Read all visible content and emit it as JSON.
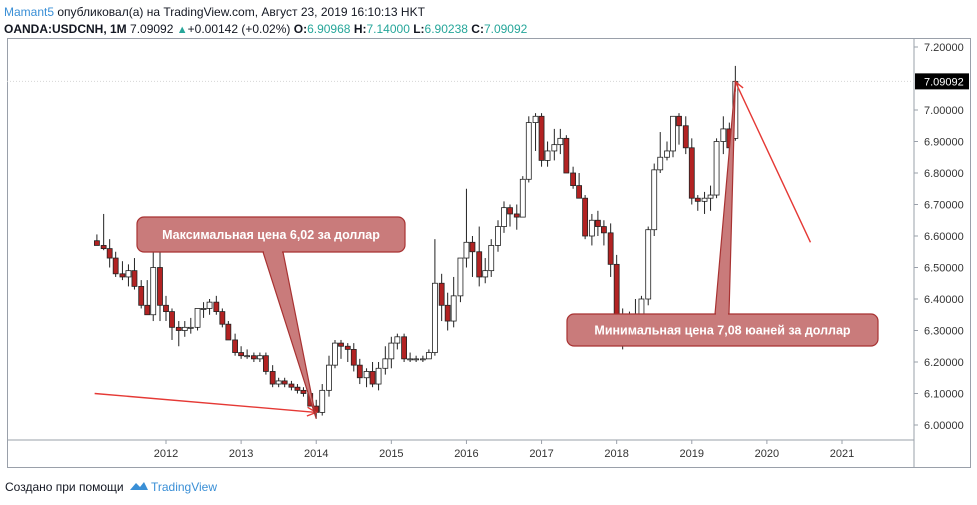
{
  "header": {
    "author": "Mamant5",
    "published_text": "опубликовал(а) на TradingView.com, Август 23, 2019 16:10:13 HKT",
    "symbol": "OANDA:USDCNH, 1M",
    "last": "7.09092",
    "change": "+0.00142 (+0.02%)",
    "o_label": "O:",
    "o_value": "6.90968",
    "h_label": "H:",
    "h_value": "7.14000",
    "l_label": "L:",
    "l_value": "6.90238",
    "c_label": "C:",
    "c_value": "7.09092"
  },
  "footer": {
    "text": "Создано при помощи",
    "brand": "TradingView"
  },
  "colors": {
    "up_candle": "#ffffff",
    "down_candle": "#b22222",
    "annotation_fill": "#c97b7b",
    "annotation_border": "#a83232",
    "arrow": "#e53935",
    "last_price_bg": "#000000"
  },
  "chart_data": {
    "type": "candlestick",
    "title": "",
    "xlabel": "",
    "ylabel": "",
    "x_ticks": [
      "2012",
      "2013",
      "2014",
      "2015",
      "2016",
      "2017",
      "2018",
      "2019",
      "2020",
      "2021"
    ],
    "y_ticks": [
      "6.00000",
      "6.10000",
      "6.20000",
      "6.30000",
      "6.40000",
      "6.50000",
      "6.60000",
      "6.70000",
      "6.80000",
      "6.90000",
      "7.00000",
      "7.20000"
    ],
    "ylim": [
      5.95,
      7.27
    ],
    "x_range": [
      2010.75,
      2021.58
    ],
    "grid": false,
    "last_price_label": "7.09092",
    "last_price": 7.09092,
    "candles": [
      {
        "t": 2011.08,
        "o": 6.585,
        "h": 6.605,
        "l": 6.57,
        "c": 6.57
      },
      {
        "t": 2011.17,
        "o": 6.57,
        "h": 6.67,
        "l": 6.555,
        "c": 6.56
      },
      {
        "t": 2011.25,
        "o": 6.56,
        "h": 6.59,
        "l": 6.5,
        "c": 6.53
      },
      {
        "t": 2011.33,
        "o": 6.53,
        "h": 6.55,
        "l": 6.47,
        "c": 6.48
      },
      {
        "t": 2011.42,
        "o": 6.48,
        "h": 6.52,
        "l": 6.46,
        "c": 6.47
      },
      {
        "t": 2011.5,
        "o": 6.47,
        "h": 6.51,
        "l": 6.44,
        "c": 6.49
      },
      {
        "t": 2011.58,
        "o": 6.49,
        "h": 6.53,
        "l": 6.43,
        "c": 6.44
      },
      {
        "t": 2011.67,
        "o": 6.44,
        "h": 6.46,
        "l": 6.37,
        "c": 6.38
      },
      {
        "t": 2011.75,
        "o": 6.38,
        "h": 6.46,
        "l": 6.35,
        "c": 6.35
      },
      {
        "t": 2011.83,
        "o": 6.35,
        "h": 6.55,
        "l": 6.33,
        "c": 6.5
      },
      {
        "t": 2011.92,
        "o": 6.5,
        "h": 6.58,
        "l": 6.33,
        "c": 6.38
      },
      {
        "t": 2012.0,
        "o": 6.38,
        "h": 6.41,
        "l": 6.33,
        "c": 6.36
      },
      {
        "t": 2012.08,
        "o": 6.36,
        "h": 6.37,
        "l": 6.27,
        "c": 6.31
      },
      {
        "t": 2012.17,
        "o": 6.31,
        "h": 6.33,
        "l": 6.25,
        "c": 6.3
      },
      {
        "t": 2012.25,
        "o": 6.3,
        "h": 6.33,
        "l": 6.28,
        "c": 6.31
      },
      {
        "t": 2012.33,
        "o": 6.31,
        "h": 6.34,
        "l": 6.29,
        "c": 6.31
      },
      {
        "t": 2012.42,
        "o": 6.31,
        "h": 6.37,
        "l": 6.3,
        "c": 6.37
      },
      {
        "t": 2012.5,
        "o": 6.37,
        "h": 6.39,
        "l": 6.34,
        "c": 6.37
      },
      {
        "t": 2012.58,
        "o": 6.37,
        "h": 6.4,
        "l": 6.35,
        "c": 6.39
      },
      {
        "t": 2012.67,
        "o": 6.39,
        "h": 6.41,
        "l": 6.35,
        "c": 6.36
      },
      {
        "t": 2012.75,
        "o": 6.36,
        "h": 6.37,
        "l": 6.31,
        "c": 6.32
      },
      {
        "t": 2012.83,
        "o": 6.32,
        "h": 6.33,
        "l": 6.27,
        "c": 6.27
      },
      {
        "t": 2012.92,
        "o": 6.27,
        "h": 6.29,
        "l": 6.22,
        "c": 6.23
      },
      {
        "t": 2013.0,
        "o": 6.23,
        "h": 6.25,
        "l": 6.21,
        "c": 6.22
      },
      {
        "t": 2013.08,
        "o": 6.22,
        "h": 6.24,
        "l": 6.21,
        "c": 6.22
      },
      {
        "t": 2013.17,
        "o": 6.22,
        "h": 6.23,
        "l": 6.2,
        "c": 6.21
      },
      {
        "t": 2013.25,
        "o": 6.21,
        "h": 6.23,
        "l": 6.2,
        "c": 6.22
      },
      {
        "t": 2013.33,
        "o": 6.22,
        "h": 6.23,
        "l": 6.16,
        "c": 6.17
      },
      {
        "t": 2013.42,
        "o": 6.17,
        "h": 6.19,
        "l": 6.12,
        "c": 6.13
      },
      {
        "t": 2013.5,
        "o": 6.13,
        "h": 6.15,
        "l": 6.12,
        "c": 6.14
      },
      {
        "t": 2013.58,
        "o": 6.14,
        "h": 6.15,
        "l": 6.12,
        "c": 6.13
      },
      {
        "t": 2013.67,
        "o": 6.13,
        "h": 6.14,
        "l": 6.11,
        "c": 6.12
      },
      {
        "t": 2013.75,
        "o": 6.12,
        "h": 6.13,
        "l": 6.1,
        "c": 6.11
      },
      {
        "t": 2013.83,
        "o": 6.11,
        "h": 6.12,
        "l": 6.09,
        "c": 6.1
      },
      {
        "t": 2013.92,
        "o": 6.1,
        "h": 6.11,
        "l": 6.06,
        "c": 6.06
      },
      {
        "t": 2014.0,
        "o": 6.06,
        "h": 6.08,
        "l": 6.02,
        "c": 6.04
      },
      {
        "t": 2014.08,
        "o": 6.04,
        "h": 6.13,
        "l": 6.03,
        "c": 6.11
      },
      {
        "t": 2014.17,
        "o": 6.11,
        "h": 6.22,
        "l": 6.09,
        "c": 6.19
      },
      {
        "t": 2014.25,
        "o": 6.19,
        "h": 6.27,
        "l": 6.18,
        "c": 6.26
      },
      {
        "t": 2014.33,
        "o": 6.26,
        "h": 6.27,
        "l": 6.21,
        "c": 6.25
      },
      {
        "t": 2014.42,
        "o": 6.25,
        "h": 6.26,
        "l": 6.2,
        "c": 6.24
      },
      {
        "t": 2014.5,
        "o": 6.24,
        "h": 6.26,
        "l": 6.17,
        "c": 6.19
      },
      {
        "t": 2014.58,
        "o": 6.19,
        "h": 6.21,
        "l": 6.13,
        "c": 6.15
      },
      {
        "t": 2014.67,
        "o": 6.15,
        "h": 6.18,
        "l": 6.12,
        "c": 6.17
      },
      {
        "t": 2014.75,
        "o": 6.17,
        "h": 6.2,
        "l": 6.12,
        "c": 6.13
      },
      {
        "t": 2014.83,
        "o": 6.13,
        "h": 6.2,
        "l": 6.11,
        "c": 6.18
      },
      {
        "t": 2014.92,
        "o": 6.18,
        "h": 6.25,
        "l": 6.16,
        "c": 6.21
      },
      {
        "t": 2015.0,
        "o": 6.21,
        "h": 6.28,
        "l": 6.18,
        "c": 6.26
      },
      {
        "t": 2015.08,
        "o": 6.26,
        "h": 6.29,
        "l": 6.24,
        "c": 6.28
      },
      {
        "t": 2015.17,
        "o": 6.28,
        "h": 6.29,
        "l": 6.2,
        "c": 6.21
      },
      {
        "t": 2015.25,
        "o": 6.21,
        "h": 6.23,
        "l": 6.2,
        "c": 6.21
      },
      {
        "t": 2015.33,
        "o": 6.21,
        "h": 6.22,
        "l": 6.2,
        "c": 6.21
      },
      {
        "t": 2015.42,
        "o": 6.21,
        "h": 6.22,
        "l": 6.2,
        "c": 6.21
      },
      {
        "t": 2015.5,
        "o": 6.21,
        "h": 6.24,
        "l": 6.21,
        "c": 6.23
      },
      {
        "t": 2015.58,
        "o": 6.23,
        "h": 6.59,
        "l": 6.22,
        "c": 6.45
      },
      {
        "t": 2015.67,
        "o": 6.45,
        "h": 6.48,
        "l": 6.33,
        "c": 6.38
      },
      {
        "t": 2015.75,
        "o": 6.38,
        "h": 6.42,
        "l": 6.3,
        "c": 6.33
      },
      {
        "t": 2015.83,
        "o": 6.33,
        "h": 6.47,
        "l": 6.31,
        "c": 6.41
      },
      {
        "t": 2015.92,
        "o": 6.41,
        "h": 6.53,
        "l": 6.39,
        "c": 6.53
      },
      {
        "t": 2016.0,
        "o": 6.53,
        "h": 6.75,
        "l": 6.5,
        "c": 6.58
      },
      {
        "t": 2016.08,
        "o": 6.58,
        "h": 6.6,
        "l": 6.47,
        "c": 6.55
      },
      {
        "t": 2016.17,
        "o": 6.55,
        "h": 6.63,
        "l": 6.44,
        "c": 6.47
      },
      {
        "t": 2016.25,
        "o": 6.47,
        "h": 6.53,
        "l": 6.45,
        "c": 6.49
      },
      {
        "t": 2016.33,
        "o": 6.49,
        "h": 6.59,
        "l": 6.47,
        "c": 6.57
      },
      {
        "t": 2016.42,
        "o": 6.57,
        "h": 6.65,
        "l": 6.55,
        "c": 6.63
      },
      {
        "t": 2016.5,
        "o": 6.63,
        "h": 6.71,
        "l": 6.61,
        "c": 6.69
      },
      {
        "t": 2016.58,
        "o": 6.69,
        "h": 6.7,
        "l": 6.63,
        "c": 6.67
      },
      {
        "t": 2016.67,
        "o": 6.67,
        "h": 6.7,
        "l": 6.62,
        "c": 6.66
      },
      {
        "t": 2016.75,
        "o": 6.66,
        "h": 6.79,
        "l": 6.66,
        "c": 6.78
      },
      {
        "t": 2016.83,
        "o": 6.78,
        "h": 6.98,
        "l": 6.77,
        "c": 6.96
      },
      {
        "t": 2016.92,
        "o": 6.96,
        "h": 6.99,
        "l": 6.87,
        "c": 6.98
      },
      {
        "t": 2017.0,
        "o": 6.98,
        "h": 6.99,
        "l": 6.82,
        "c": 6.84
      },
      {
        "t": 2017.08,
        "o": 6.84,
        "h": 6.9,
        "l": 6.82,
        "c": 6.87
      },
      {
        "t": 2017.17,
        "o": 6.87,
        "h": 6.94,
        "l": 6.84,
        "c": 6.89
      },
      {
        "t": 2017.25,
        "o": 6.89,
        "h": 6.94,
        "l": 6.86,
        "c": 6.91
      },
      {
        "t": 2017.33,
        "o": 6.91,
        "h": 6.92,
        "l": 6.8,
        "c": 6.8
      },
      {
        "t": 2017.42,
        "o": 6.8,
        "h": 6.82,
        "l": 6.75,
        "c": 6.76
      },
      {
        "t": 2017.5,
        "o": 6.76,
        "h": 6.8,
        "l": 6.72,
        "c": 6.72
      },
      {
        "t": 2017.58,
        "o": 6.72,
        "h": 6.73,
        "l": 6.59,
        "c": 6.6
      },
      {
        "t": 2017.67,
        "o": 6.6,
        "h": 6.67,
        "l": 6.57,
        "c": 6.65
      },
      {
        "t": 2017.75,
        "o": 6.65,
        "h": 6.68,
        "l": 6.6,
        "c": 6.63
      },
      {
        "t": 2017.83,
        "o": 6.63,
        "h": 6.65,
        "l": 6.57,
        "c": 6.61
      },
      {
        "t": 2017.92,
        "o": 6.61,
        "h": 6.64,
        "l": 6.47,
        "c": 6.51
      },
      {
        "t": 2018.0,
        "o": 6.51,
        "h": 6.54,
        "l": 6.28,
        "c": 6.32
      },
      {
        "t": 2018.08,
        "o": 6.32,
        "h": 6.37,
        "l": 6.24,
        "c": 6.33
      },
      {
        "t": 2018.17,
        "o": 6.33,
        "h": 6.36,
        "l": 6.25,
        "c": 6.28
      },
      {
        "t": 2018.25,
        "o": 6.28,
        "h": 6.4,
        "l": 6.27,
        "c": 6.31
      },
      {
        "t": 2018.33,
        "o": 6.31,
        "h": 6.41,
        "l": 6.3,
        "c": 6.4
      },
      {
        "t": 2018.42,
        "o": 6.4,
        "h": 6.63,
        "l": 6.38,
        "c": 6.62
      },
      {
        "t": 2018.5,
        "o": 6.62,
        "h": 6.83,
        "l": 6.6,
        "c": 6.81
      },
      {
        "t": 2018.58,
        "o": 6.81,
        "h": 6.93,
        "l": 6.8,
        "c": 6.85
      },
      {
        "t": 2018.67,
        "o": 6.85,
        "h": 6.9,
        "l": 6.84,
        "c": 6.87
      },
      {
        "t": 2018.75,
        "o": 6.87,
        "h": 6.98,
        "l": 6.85,
        "c": 6.98
      },
      {
        "t": 2018.83,
        "o": 6.98,
        "h": 6.99,
        "l": 6.89,
        "c": 6.95
      },
      {
        "t": 2018.92,
        "o": 6.95,
        "h": 6.98,
        "l": 6.86,
        "c": 6.88
      },
      {
        "t": 2019.0,
        "o": 6.88,
        "h": 6.91,
        "l": 6.7,
        "c": 6.72
      },
      {
        "t": 2019.08,
        "o": 6.72,
        "h": 6.73,
        "l": 6.68,
        "c": 6.71
      },
      {
        "t": 2019.17,
        "o": 6.71,
        "h": 6.74,
        "l": 6.67,
        "c": 6.72
      },
      {
        "t": 2019.25,
        "o": 6.72,
        "h": 6.76,
        "l": 6.68,
        "c": 6.73
      },
      {
        "t": 2019.33,
        "o": 6.73,
        "h": 6.91,
        "l": 6.72,
        "c": 6.9
      },
      {
        "t": 2019.42,
        "o": 6.9,
        "h": 6.98,
        "l": 6.86,
        "c": 6.94
      },
      {
        "t": 2019.5,
        "o": 6.94,
        "h": 6.96,
        "l": 6.85,
        "c": 6.88
      },
      {
        "t": 2019.58,
        "o": 6.90968,
        "h": 7.14,
        "l": 6.90238,
        "c": 7.09092
      }
    ],
    "annotations": [
      {
        "text": "Максимальная цена 6,02 за доллар",
        "points_to": [
          2014.0,
          6.02
        ]
      },
      {
        "text": "Минимальная цена 7,08 юаней за доллар",
        "points_to": [
          2019.58,
          7.09
        ]
      }
    ],
    "trend_arrows": [
      {
        "from": [
          2011.05,
          6.1
        ],
        "to": [
          2014.0,
          6.04
        ]
      },
      {
        "from": [
          2020.58,
          6.58
        ],
        "to": [
          2019.58,
          7.09
        ]
      }
    ]
  }
}
